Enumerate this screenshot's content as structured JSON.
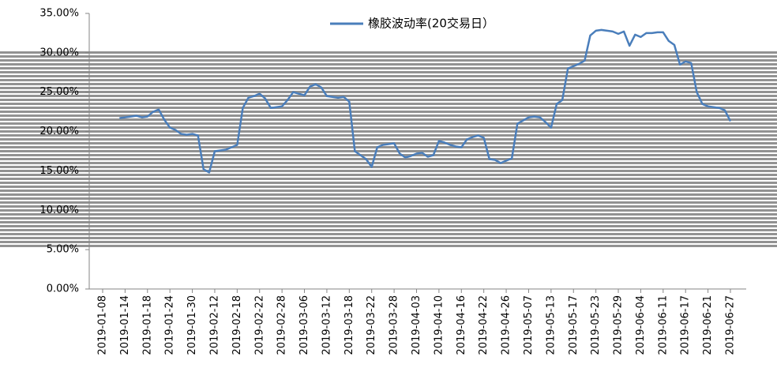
{
  "chart_data": {
    "type": "line",
    "legend": "top-center",
    "categories": [
      "2019-01-08",
      null,
      null,
      null,
      "2019-01-14",
      null,
      null,
      null,
      "2019-01-18",
      null,
      null,
      null,
      "2019-01-24",
      null,
      null,
      null,
      "2019-01-30",
      null,
      null,
      null,
      "2019-02-12",
      null,
      null,
      null,
      "2019-02-18",
      null,
      null,
      null,
      "2019-02-22",
      null,
      null,
      null,
      "2019-02-28",
      null,
      null,
      null,
      "2019-03-06",
      null,
      null,
      null,
      "2019-03-12",
      null,
      null,
      null,
      "2019-03-18",
      null,
      null,
      null,
      "2019-03-22",
      null,
      null,
      null,
      "2019-03-28",
      null,
      null,
      null,
      "2019-04-03",
      null,
      null,
      null,
      "2019-04-10",
      null,
      null,
      null,
      "2019-04-16",
      null,
      null,
      null,
      "2019-04-22",
      null,
      null,
      null,
      "2019-04-26",
      null,
      null,
      null,
      "2019-05-07",
      null,
      null,
      null,
      "2019-05-13",
      null,
      null,
      null,
      "2019-05-17",
      null,
      null,
      null,
      "2019-05-23",
      null,
      null,
      null,
      "2019-05-29",
      null,
      null,
      null,
      "2019-06-04",
      null,
      null,
      null,
      "2019-06-11",
      null,
      null,
      null,
      "2019-06-17",
      null,
      null,
      null,
      "2019-06-21",
      null,
      null,
      null,
      "2019-06-27"
    ],
    "series": [
      {
        "name": "橡胶波动率(20交易日）",
        "color": "#4a7ebb",
        "values": [
          null,
          null,
          null,
          21.7,
          21.8,
          21.9,
          22.0,
          21.8,
          21.9,
          22.5,
          22.8,
          21.5,
          20.5,
          20.2,
          19.7,
          19.6,
          19.7,
          19.5,
          15.2,
          14.8,
          17.5,
          17.6,
          17.7,
          18.0,
          18.3,
          23.0,
          24.3,
          24.5,
          24.8,
          24.2,
          23.0,
          23.1,
          23.2,
          24.0,
          25.0,
          24.8,
          24.6,
          25.7,
          26.0,
          25.6,
          24.5,
          24.4,
          24.3,
          24.4,
          23.8,
          17.5,
          17.0,
          16.5,
          15.5,
          18.0,
          18.3,
          18.4,
          18.5,
          17.2,
          16.7,
          16.9,
          17.2,
          17.3,
          16.8,
          17.0,
          18.8,
          18.6,
          18.3,
          18.1,
          18.0,
          19.0,
          19.3,
          19.5,
          19.2,
          16.5,
          16.4,
          16.0,
          16.3,
          16.6,
          21.0,
          21.4,
          21.8,
          21.9,
          21.8,
          21.2,
          20.5,
          23.5,
          24.0,
          28.0,
          28.3,
          28.6,
          29.0,
          32.2,
          32.8,
          32.9,
          32.8,
          32.7,
          32.4,
          32.7,
          30.9,
          32.3,
          32.0,
          32.5,
          32.5,
          32.6,
          32.6,
          31.5,
          31.0,
          28.5,
          28.9,
          28.7,
          25.0,
          23.5,
          23.2,
          23.1,
          23.0,
          22.7,
          21.3
        ]
      }
    ],
    "ylim": [
      0,
      35
    ],
    "yticks": [
      {
        "value": 0,
        "label": "0.00%"
      },
      {
        "value": 5,
        "label": "5.00%"
      },
      {
        "value": 10,
        "label": "10.00%"
      },
      {
        "value": 15,
        "label": "15.00%"
      },
      {
        "value": 20,
        "label": "20.00%"
      },
      {
        "value": 25,
        "label": "25.00%"
      },
      {
        "value": 30,
        "label": "30.00%"
      },
      {
        "value": 35,
        "label": "35.00%"
      }
    ],
    "grid": false
  }
}
